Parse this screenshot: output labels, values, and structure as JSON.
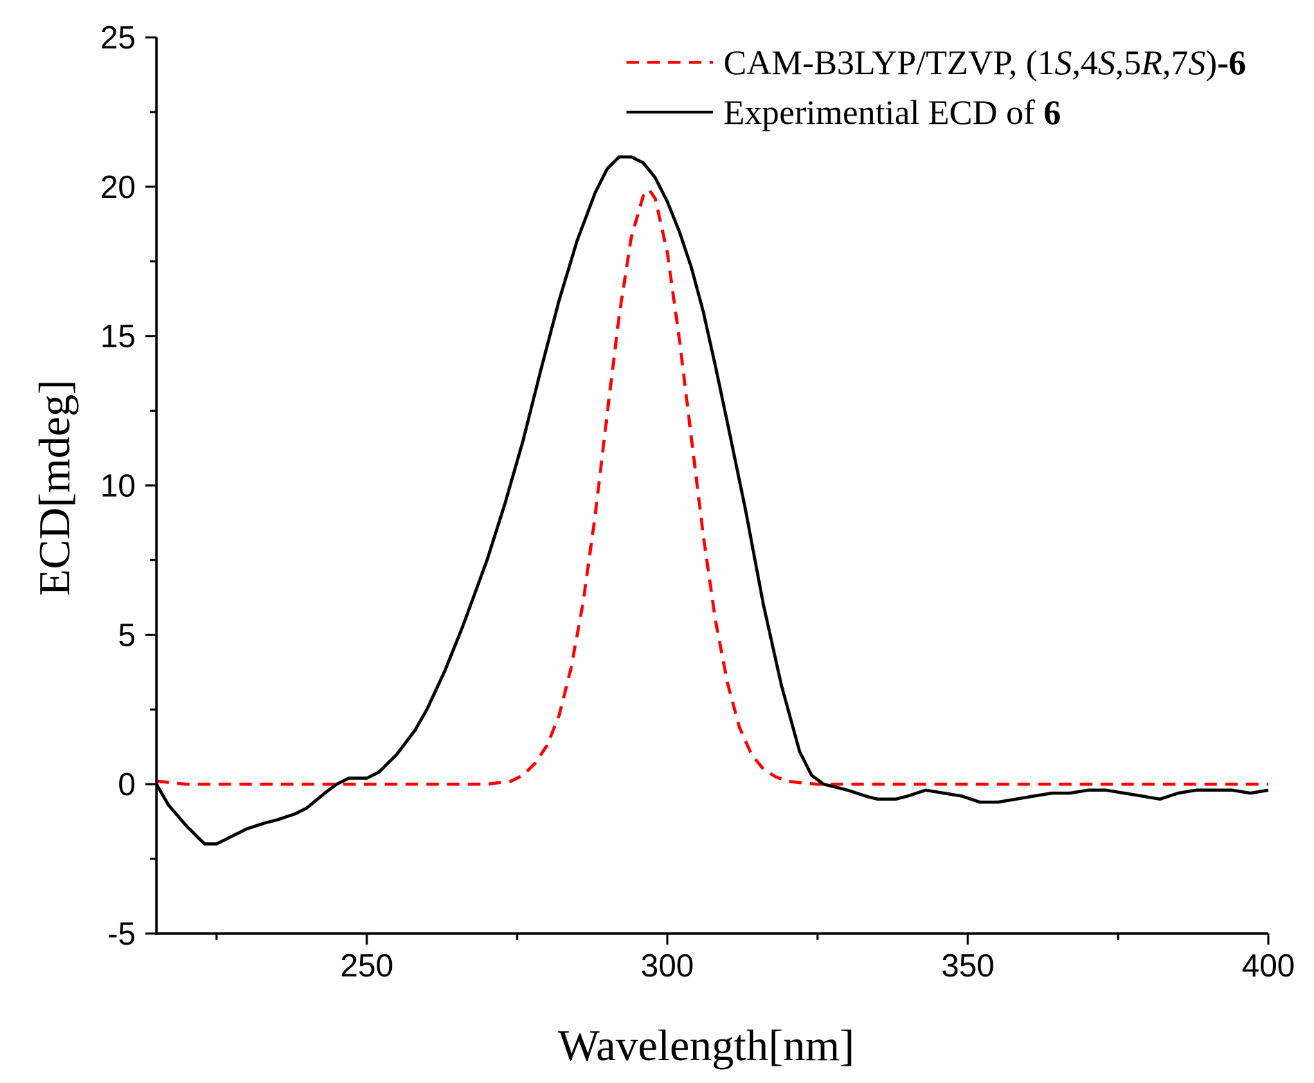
{
  "chart_data": {
    "type": "line",
    "title": "",
    "xlabel": "Wavelength[nm]",
    "ylabel": "ECD[mdeg]",
    "xlim": [
      215,
      400
    ],
    "ylim": [
      -5,
      25
    ],
    "x_ticks": [
      250,
      300,
      350,
      400
    ],
    "x_tick_labels": [
      "250",
      "300",
      "350",
      "400"
    ],
    "x_minor_ticks": [
      225,
      275,
      325,
      375
    ],
    "y_ticks": [
      -5,
      0,
      5,
      10,
      15,
      20,
      25
    ],
    "y_tick_labels": [
      "-5",
      "0",
      "5",
      "10",
      "15",
      "20",
      "25"
    ],
    "y_minor_ticks": [
      -2.5,
      2.5,
      7.5,
      12.5,
      17.5,
      22.5
    ],
    "grid": false,
    "legend_position": "top-right",
    "legend": {
      "calc": {
        "prefix": "CAM-B3LYP/TZVP, (1",
        "s1": "S",
        "mid1": ",4",
        "s2": "S",
        "mid2": ",5",
        "r": "R",
        "mid3": ",7",
        "s3": "S",
        "close": ")",
        "bold": "-6"
      },
      "exp": {
        "prefix": "Experimential ECD of ",
        "bold": "6"
      }
    },
    "series": [
      {
        "name": "CAM-B3LYP/TZVP, (1S,4S,5R,7S)-6",
        "color": "#ff0000",
        "style": "dashed",
        "x": [
          215,
          220,
          230,
          240,
          250,
          260,
          270,
          274,
          276,
          278,
          280,
          282,
          284,
          286,
          288,
          290,
          292,
          294,
          296,
          297,
          298,
          300,
          302,
          304,
          306,
          308,
          310,
          312,
          314,
          316,
          318,
          320,
          322,
          325,
          330,
          340,
          360,
          380,
          400
        ],
        "values": [
          0.1,
          0.0,
          0.0,
          0.0,
          0.0,
          0.0,
          0.0,
          0.1,
          0.3,
          0.7,
          1.3,
          2.3,
          3.9,
          6.1,
          9.0,
          12.4,
          15.7,
          18.3,
          19.7,
          19.9,
          19.6,
          17.8,
          14.9,
          11.6,
          8.3,
          5.5,
          3.4,
          1.9,
          1.0,
          0.5,
          0.25,
          0.1,
          0.05,
          0.0,
          0.0,
          0.0,
          0.0,
          0.0,
          0.0
        ]
      },
      {
        "name": "Experimential ECD of 6",
        "color": "#000000",
        "style": "solid",
        "x": [
          215,
          217,
          220,
          223,
          225,
          227,
          230,
          233,
          235,
          238,
          240,
          243,
          245,
          247,
          249,
          250,
          252,
          255,
          258,
          260,
          263,
          266,
          270,
          273,
          276,
          279,
          282,
          285,
          288,
          290,
          292,
          294,
          296,
          298,
          300,
          302,
          304,
          306,
          308,
          310,
          313,
          316,
          319,
          322,
          324,
          326,
          328,
          330,
          333,
          335,
          338,
          340,
          343,
          346,
          349,
          352,
          355,
          358,
          361,
          364,
          367,
          370,
          373,
          376,
          379,
          382,
          385,
          388,
          391,
          394,
          397,
          400
        ],
        "values": [
          0.0,
          -0.7,
          -1.4,
          -2.0,
          -2.0,
          -1.8,
          -1.5,
          -1.3,
          -1.2,
          -1.0,
          -0.8,
          -0.3,
          0.0,
          0.2,
          0.2,
          0.2,
          0.4,
          1.0,
          1.8,
          2.5,
          3.8,
          5.3,
          7.5,
          9.4,
          11.5,
          13.9,
          16.2,
          18.2,
          19.8,
          20.6,
          21.0,
          21.0,
          20.8,
          20.3,
          19.5,
          18.5,
          17.3,
          15.8,
          14.0,
          12.1,
          9.2,
          6.0,
          3.3,
          1.1,
          0.3,
          0.0,
          -0.1,
          -0.2,
          -0.4,
          -0.5,
          -0.5,
          -0.4,
          -0.2,
          -0.3,
          -0.4,
          -0.6,
          -0.6,
          -0.5,
          -0.4,
          -0.3,
          -0.3,
          -0.2,
          -0.2,
          -0.3,
          -0.4,
          -0.5,
          -0.3,
          -0.2,
          -0.2,
          -0.2,
          -0.3,
          -0.2
        ]
      }
    ]
  }
}
